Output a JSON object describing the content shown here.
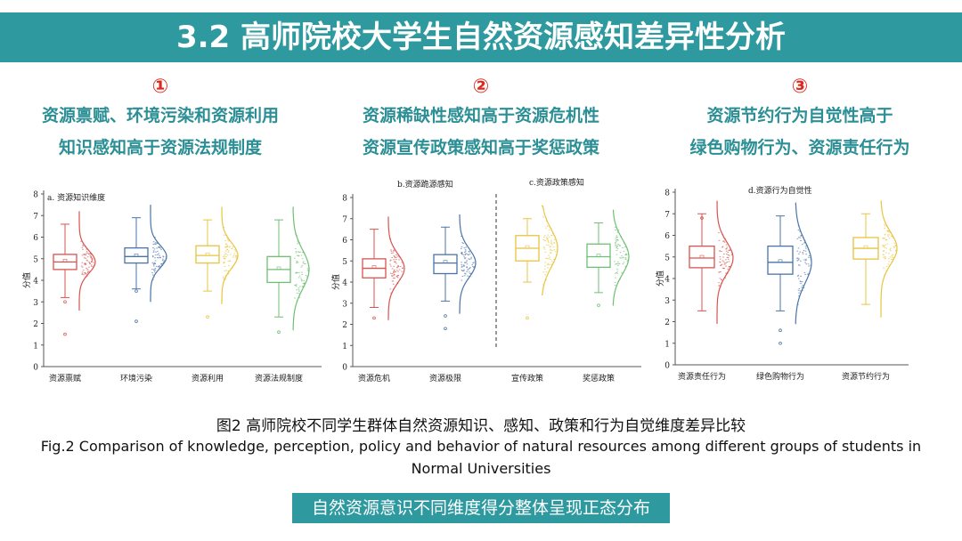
{
  "title": "3.2 高师院校大学生自然资源感知差异性分析",
  "findings": [
    {
      "num": "①",
      "line1": "资源禀赋、环境污染和资源利用",
      "line2": "知识感知高于资源法规制度"
    },
    {
      "num": "②",
      "line1": "资源稀缺性感知高于资源危机性",
      "line2": "资源宣传政策感知高于奖惩政策"
    },
    {
      "num": "③",
      "line1": "资源节约行为自觉性高于",
      "line2": "绿色购物行为、资源责任行为"
    }
  ],
  "caption_cn": "图2 高师院校不同学生群体自然资源知识、感知、政策和行为自觉维度差异比较",
  "caption_en": "Fig.2 Comparison of knowledge, perception, policy and behavior of natural resources among different groups of students in Normal Universities",
  "banner": "自然资源意识不同维度得分整体呈现正态分布",
  "colors": {
    "teal": "#2e9aa0",
    "red_num": "#e0281e",
    "teal_text": "#2b8f95"
  },
  "chart_data": [
    {
      "type": "box",
      "title": "a. 资源知识维度",
      "ylabel": "分值",
      "ylim": [
        0,
        8
      ],
      "yticks": [
        "0",
        "1",
        "2",
        "3",
        "4",
        "5",
        "6",
        "7",
        "8"
      ],
      "categories": [
        "资源禀赋",
        "环境污染",
        "资源利用",
        "资源法规制度"
      ],
      "colors": [
        "#d9534f",
        "#4a74a8",
        "#e8c440",
        "#6fbf73"
      ],
      "boxes": [
        {
          "min": 3.2,
          "q1": 4.5,
          "median": 4.85,
          "q3": 5.2,
          "max": 6.6,
          "outliers": [
            1.5,
            3.0
          ]
        },
        {
          "min": 3.6,
          "q1": 4.8,
          "median": 5.1,
          "q3": 5.5,
          "max": 6.9,
          "outliers": [
            2.1,
            3.5
          ]
        },
        {
          "min": 3.5,
          "q1": 4.8,
          "median": 5.15,
          "q3": 5.6,
          "max": 6.8,
          "outliers": [
            2.3
          ]
        },
        {
          "min": 2.3,
          "q1": 3.9,
          "median": 4.5,
          "q3": 5.1,
          "max": 6.8,
          "outliers": [
            1.6
          ]
        }
      ]
    },
    {
      "type": "box",
      "title_left": "b.资源跪源感知",
      "title_right": "c.资源政策感知",
      "ylabel": "分值",
      "ylim": [
        0,
        8
      ],
      "yticks": [
        "0",
        "1",
        "2",
        "3",
        "4",
        "5",
        "6",
        "7",
        "8"
      ],
      "categories": [
        "资源危机",
        "资源极限",
        "宣传政策",
        "奖惩政策"
      ],
      "colors": [
        "#d9534f",
        "#4a74a8",
        "#e8c440",
        "#6fbf73"
      ],
      "boxes": [
        {
          "min": 2.8,
          "q1": 4.2,
          "median": 4.65,
          "q3": 5.1,
          "max": 6.5,
          "outliers": [
            2.3
          ]
        },
        {
          "min": 3.1,
          "q1": 4.4,
          "median": 4.9,
          "q3": 5.3,
          "max": 6.6,
          "outliers": [
            1.8,
            2.4
          ]
        },
        {
          "min": 4.0,
          "q1": 5.0,
          "median": 5.6,
          "q3": 6.2,
          "max": 7.0,
          "outliers": [
            2.3
          ]
        },
        {
          "min": 3.5,
          "q1": 4.7,
          "median": 5.2,
          "q3": 5.8,
          "max": 6.8,
          "outliers": [
            2.9
          ]
        }
      ]
    },
    {
      "type": "box",
      "title": "d.资源行为自觉性",
      "ylabel": "分值",
      "ylim": [
        0,
        8
      ],
      "yticks": [
        "0",
        "1",
        "2",
        "3",
        "4",
        "5",
        "6",
        "7",
        "8"
      ],
      "categories": [
        "资源责任行为",
        "绿色购物行为",
        "资源节约行为"
      ],
      "colors": [
        "#d9534f",
        "#4a74a8",
        "#e8c440"
      ],
      "boxes": [
        {
          "min": 2.5,
          "q1": 4.5,
          "median": 4.95,
          "q3": 5.5,
          "max": 7.0,
          "outliers": [
            6.8
          ]
        },
        {
          "min": 2.5,
          "q1": 4.2,
          "median": 4.75,
          "q3": 5.5,
          "max": 6.9,
          "outliers": [
            1.0,
            1.6
          ]
        },
        {
          "min": 2.8,
          "q1": 4.9,
          "median": 5.4,
          "q3": 5.9,
          "max": 7.0,
          "outliers": []
        }
      ]
    }
  ]
}
